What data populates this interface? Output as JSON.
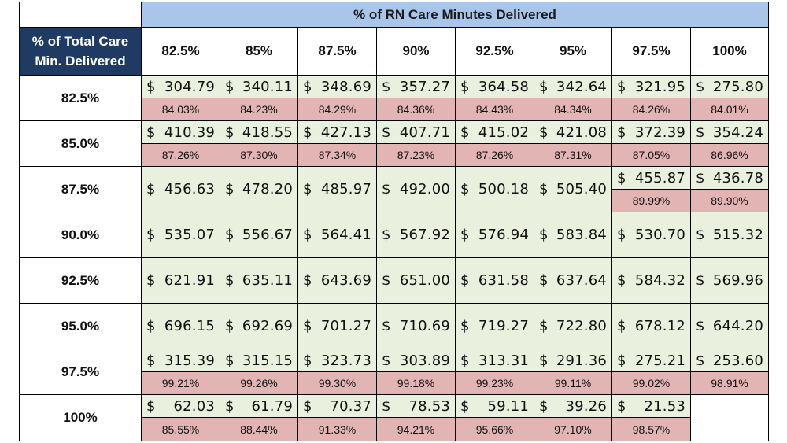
{
  "table": {
    "banner": "% of RN Care Minutes Delivered",
    "corner_label": "% of Total Care\nMin. Delivered",
    "currency": "$",
    "col_headers": [
      "82.5%",
      "85%",
      "87.5%",
      "90%",
      "92.5%",
      "95%",
      "97.5%",
      "100%"
    ],
    "row_headers": [
      "82.5%",
      "85.0%",
      "87.5%",
      "90.0%",
      "92.5%",
      "95.0%",
      "97.5%",
      "100%"
    ],
    "rows": [
      [
        {
          "value": "304.79",
          "pct": "84.03%"
        },
        {
          "value": "340.11",
          "pct": "84.23%"
        },
        {
          "value": "348.69",
          "pct": "84.29%"
        },
        {
          "value": "357.27",
          "pct": "84.36%"
        },
        {
          "value": "364.58",
          "pct": "84.43%"
        },
        {
          "value": "342.64",
          "pct": "84.34%"
        },
        {
          "value": "321.95",
          "pct": "84.26%"
        },
        {
          "value": "275.80",
          "pct": "84.01%"
        }
      ],
      [
        {
          "value": "410.39",
          "pct": "87.26%"
        },
        {
          "value": "418.55",
          "pct": "87.30%"
        },
        {
          "value": "427.13",
          "pct": "87.34%"
        },
        {
          "value": "407.71",
          "pct": "87.23%"
        },
        {
          "value": "415.02",
          "pct": "87.26%"
        },
        {
          "value": "421.08",
          "pct": "87.31%"
        },
        {
          "value": "372.39",
          "pct": "87.05%"
        },
        {
          "value": "354.24",
          "pct": "86.96%"
        }
      ],
      [
        {
          "value": "456.63"
        },
        {
          "value": "478.20"
        },
        {
          "value": "485.97"
        },
        {
          "value": "492.00"
        },
        {
          "value": "500.18"
        },
        {
          "value": "505.40"
        },
        {
          "value": "455.87",
          "pct": "89.99%"
        },
        {
          "value": "436.78",
          "pct": "89.90%"
        }
      ],
      [
        {
          "value": "535.07"
        },
        {
          "value": "556.67"
        },
        {
          "value": "564.41"
        },
        {
          "value": "567.92"
        },
        {
          "value": "576.94"
        },
        {
          "value": "583.84"
        },
        {
          "value": "530.70"
        },
        {
          "value": "515.32"
        }
      ],
      [
        {
          "value": "621.91"
        },
        {
          "value": "635.11"
        },
        {
          "value": "643.69"
        },
        {
          "value": "651.00"
        },
        {
          "value": "631.58"
        },
        {
          "value": "637.64"
        },
        {
          "value": "584.32"
        },
        {
          "value": "569.96"
        }
      ],
      [
        {
          "value": "696.15"
        },
        {
          "value": "692.69"
        },
        {
          "value": "701.27"
        },
        {
          "value": "710.69"
        },
        {
          "value": "719.27"
        },
        {
          "value": "722.80"
        },
        {
          "value": "678.12"
        },
        {
          "value": "644.20"
        }
      ],
      [
        {
          "value": "315.39",
          "pct": "99.21%"
        },
        {
          "value": "315.15",
          "pct": "99.26%"
        },
        {
          "value": "323.73",
          "pct": "99.30%"
        },
        {
          "value": "303.89",
          "pct": "99.18%"
        },
        {
          "value": "313.31",
          "pct": "99.23%"
        },
        {
          "value": "291.36",
          "pct": "99.11%"
        },
        {
          "value": "275.21",
          "pct": "99.02%"
        },
        {
          "value": "253.60",
          "pct": "98.91%"
        }
      ],
      [
        {
          "value": "62.03",
          "pct": "85.55%"
        },
        {
          "value": "61.79",
          "pct": "88.44%"
        },
        {
          "value": "70.37",
          "pct": "91.33%"
        },
        {
          "value": "78.53",
          "pct": "94.21%"
        },
        {
          "value": "59.11",
          "pct": "95.66%"
        },
        {
          "value": "39.26",
          "pct": "97.10%"
        },
        {
          "value": "21.53",
          "pct": "98.57%"
        },
        null
      ]
    ]
  }
}
